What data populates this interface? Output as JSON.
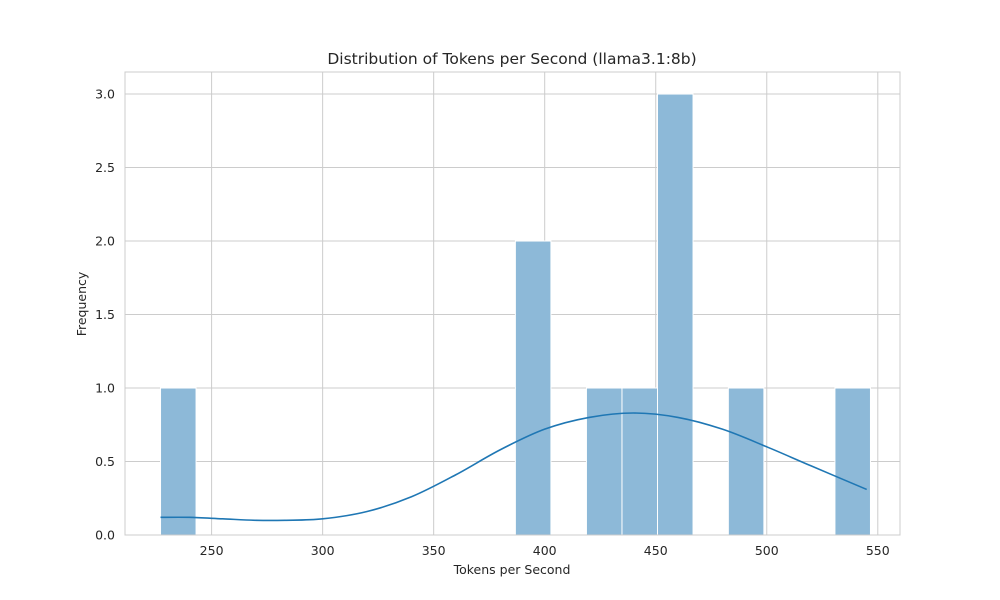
{
  "chart_data": {
    "type": "bar",
    "title": "Distribution of Tokens per Second (llama3.1:8b)",
    "xlabel": "Tokens per Second",
    "ylabel": "Frequency",
    "xlim": [
      211,
      560
    ],
    "ylim": [
      0,
      3.15
    ],
    "xticks": [
      250,
      300,
      350,
      400,
      450,
      500,
      550
    ],
    "xtick_labels": [
      "250",
      "300",
      "350",
      "400",
      "450",
      "500",
      "550"
    ],
    "yticks": [
      0,
      0.5,
      1,
      1.5,
      2,
      2.5,
      3
    ],
    "ytick_labels": [
      "0.0",
      "0.5",
      "1.0",
      "1.5",
      "2.0",
      "2.5",
      "3.0"
    ],
    "grid": true,
    "bars": [
      {
        "x0": 227,
        "x1": 243,
        "count": 1
      },
      {
        "x0": 386.8,
        "x1": 402.8,
        "count": 2
      },
      {
        "x0": 418.8,
        "x1": 434.8,
        "count": 1
      },
      {
        "x0": 434.8,
        "x1": 450.8,
        "count": 1
      },
      {
        "x0": 450.8,
        "x1": 466.8,
        "count": 3
      },
      {
        "x0": 482.7,
        "x1": 498.7,
        "count": 1
      },
      {
        "x0": 530.7,
        "x1": 546.7,
        "count": 1
      }
    ],
    "kde": {
      "x": [
        227,
        240,
        255,
        270,
        283,
        300,
        320,
        340,
        360,
        380,
        400,
        420,
        440,
        460,
        480,
        500,
        520,
        545
      ],
      "y": [
        0.12,
        0.12,
        0.11,
        0.1,
        0.1,
        0.11,
        0.16,
        0.26,
        0.41,
        0.58,
        0.72,
        0.8,
        0.83,
        0.8,
        0.72,
        0.6,
        0.47,
        0.31
      ]
    },
    "colors": {
      "bar_fill": "#8db9d8",
      "kde_line": "#1f77b4"
    }
  }
}
